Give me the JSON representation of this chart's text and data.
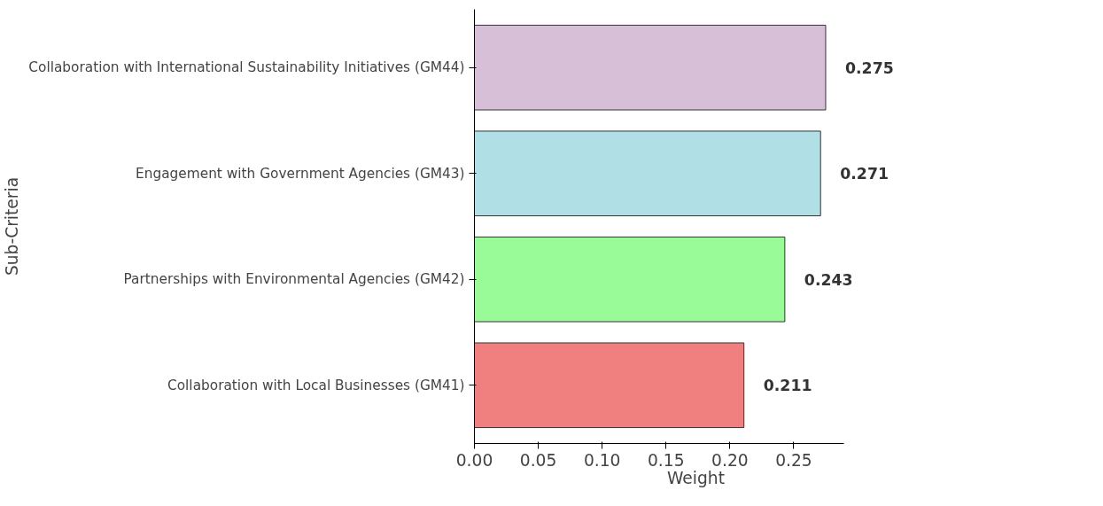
{
  "chart_data": {
    "type": "bar",
    "orientation": "horizontal",
    "xlabel": "Weight",
    "ylabel": "Sub-Criteria",
    "categories": [
      "Collaboration with International Sustainability Initiatives (GM44)",
      "Engagement with Government Agencies (GM43)",
      "Partnerships with Environmental Agencies (GM42)",
      "Collaboration with Local Businesses (GM41)"
    ],
    "values": [
      0.275,
      0.271,
      0.243,
      0.211
    ],
    "colors": [
      "#d8bfd8",
      "#b0e0e6",
      "#98fb98",
      "#f08080"
    ],
    "xlim": [
      0,
      0.289
    ],
    "xticks": [
      {
        "value": 0,
        "label": "0.00"
      },
      {
        "value": 0.05,
        "label": "0.05"
      },
      {
        "value": 0.1,
        "label": "0.10"
      },
      {
        "value": 0.15,
        "label": "0.15"
      },
      {
        "value": 0.2,
        "label": "0.20"
      },
      {
        "value": 0.25,
        "label": "0.25"
      }
    ],
    "data_labels": true,
    "grid": false
  }
}
